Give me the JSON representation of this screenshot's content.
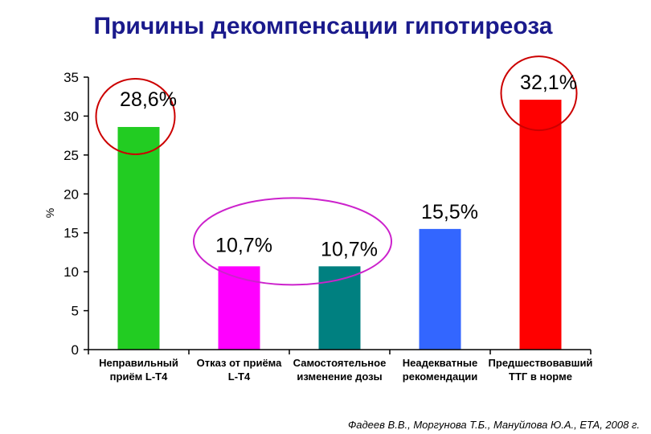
{
  "chart_data": {
    "type": "bar",
    "title": "Причины декомпенсации гипотиреоза",
    "ylabel": "%",
    "xlabel": "",
    "ylim": [
      0,
      35
    ],
    "yticks": [
      0,
      5,
      10,
      15,
      20,
      25,
      30,
      35
    ],
    "grid": false,
    "categories": [
      [
        "Неправильный",
        "приём L-T4"
      ],
      [
        "Отказ от приёма",
        "L-T4"
      ],
      [
        "Самостоятельное",
        "изменение дозы"
      ],
      [
        "Неадекватные",
        "рекомендации"
      ],
      [
        "Предшествовавший",
        "ТТГ в норме"
      ]
    ],
    "values": [
      28.6,
      10.7,
      10.7,
      15.5,
      32.1
    ],
    "value_labels": [
      "28,6%",
      "10,7%",
      "10,7%",
      "15,5%",
      "32,1%"
    ],
    "colors": [
      "#22cc22",
      "#ff00ff",
      "#008080",
      "#3366ff",
      "#ff0000"
    ],
    "highlight_color": "#cc0000",
    "highlight_group_color": "#cc22cc"
  },
  "source": "Фадеев В.В., Моргунова Т.Б., Мануйлова Ю.А., ЕТА, 2008 г."
}
